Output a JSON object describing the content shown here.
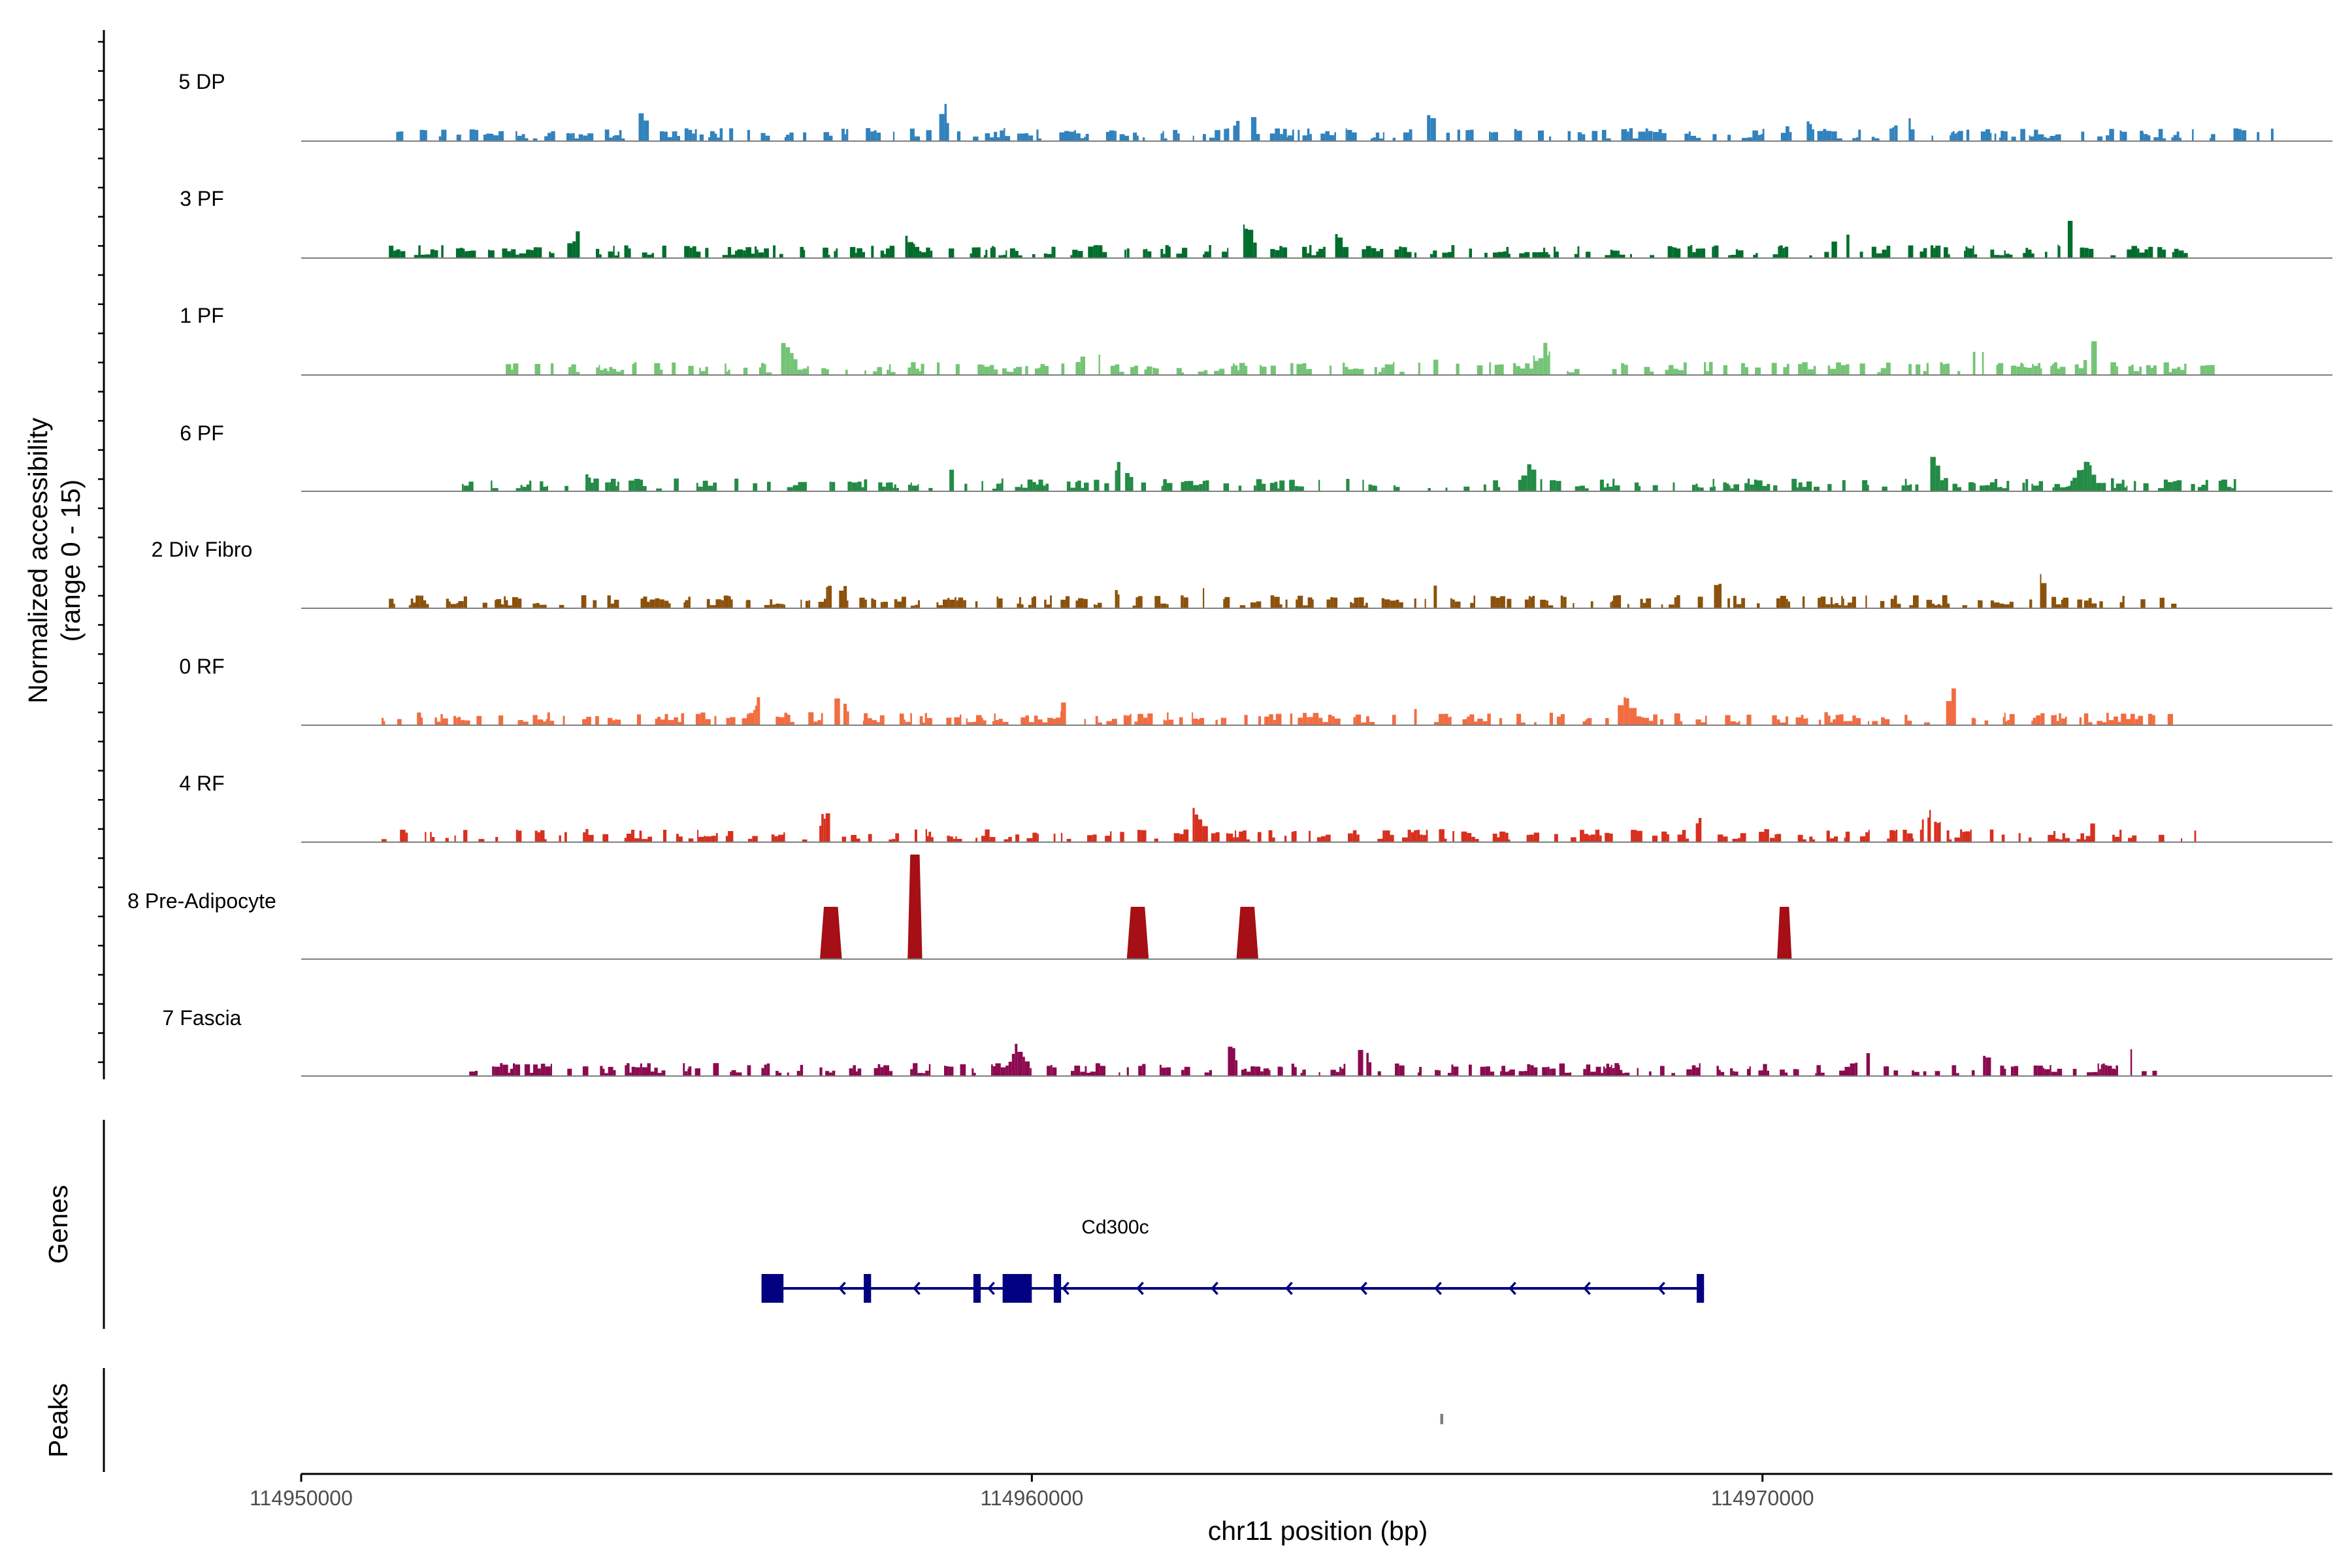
{
  "chart_data": {
    "type": "area",
    "description_of_panels": [
      "coverage",
      "genes",
      "peaks"
    ],
    "region": {
      "chromosome": "chr11",
      "start": 114950000,
      "end": 114977800
    },
    "y_axis_label": [
      "Normalized accessibility",
      "(range 0 - 15)"
    ],
    "y_range": [
      0,
      15
    ],
    "x_axis_title": "chr11 position (bp)",
    "x_ticks": [
      {
        "value": 114950000,
        "label": "114950000"
      },
      {
        "value": 114960000,
        "label": "114960000"
      },
      {
        "value": 114970000,
        "label": "114970000"
      }
    ],
    "genes_panel_label": "Genes",
    "peaks_panel_label": "Peaks",
    "tracks": [
      {
        "name": "5 DP",
        "color": "#3182bd",
        "regions": [
          [
            114951300,
            114952600
          ],
          [
            114952600,
            114954200
          ],
          [
            114954200,
            114957200
          ],
          [
            114957200,
            114958100
          ],
          [
            114958100,
            114959800
          ],
          [
            114959800,
            114960500
          ],
          [
            114960500,
            114962000
          ],
          [
            114962000,
            114963500
          ],
          [
            114963500,
            114964400
          ],
          [
            114964400,
            114965500
          ],
          [
            114965500,
            114966700
          ],
          [
            114966700,
            114968500
          ],
          [
            114968500,
            114970000
          ],
          [
            114970000,
            114972000
          ],
          [
            114972000,
            114973200
          ],
          [
            114973200,
            114974200
          ],
          [
            114974200,
            114975200
          ],
          [
            114975200,
            114976500
          ],
          [
            114976500,
            114977000
          ]
        ],
        "peaks": [
          114954700,
          114958800,
          114962900,
          114965400,
          114970500,
          114971900
        ]
      },
      {
        "name": "3 PF",
        "color": "#006d2c",
        "regions": [
          [
            114951200,
            114952300
          ],
          [
            114952300,
            114953600
          ],
          [
            114953600,
            114955400
          ],
          [
            114955400,
            114956400
          ],
          [
            114956400,
            114957800
          ],
          [
            114957800,
            114959700
          ],
          [
            114959700,
            114961300
          ],
          [
            114961300,
            114962600
          ],
          [
            114962600,
            114963900
          ],
          [
            114963900,
            114965500
          ],
          [
            114965500,
            114967200
          ],
          [
            114967200,
            114968800
          ],
          [
            114968800,
            114970400
          ],
          [
            114970400,
            114972300
          ],
          [
            114972300,
            114973600
          ],
          [
            114973600,
            114975000
          ],
          [
            114975000,
            114975800
          ]
        ],
        "peaks": [
          114953800,
          114958200,
          114962900,
          114964100,
          114971100,
          114974200
        ]
      },
      {
        "name": "1 PF",
        "color": "#74c476",
        "regions": [
          [
            114952800,
            114954700
          ],
          [
            114954700,
            114956100
          ],
          [
            114956100,
            114957300
          ],
          [
            114957300,
            114958700
          ],
          [
            114958700,
            114960100
          ],
          [
            114960100,
            114961600
          ],
          [
            114961600,
            114962900
          ],
          [
            114962900,
            114964700
          ],
          [
            114964700,
            114966100
          ],
          [
            114966100,
            114967700
          ],
          [
            114967700,
            114969100
          ],
          [
            114969100,
            114970800
          ],
          [
            114970800,
            114972200
          ],
          [
            114972200,
            114973400
          ],
          [
            114973400,
            114974500
          ],
          [
            114974500,
            114975500
          ],
          [
            114975500,
            114976200
          ]
        ],
        "peaks": [
          114956600,
          114960800,
          114965400,
          114967000,
          114972900,
          114974500
        ]
      },
      {
        "name": "6 PF",
        "color": "#238b45",
        "regions": [
          [
            114952200,
            114954000
          ],
          [
            114954000,
            114955100
          ],
          [
            114955100,
            114957100
          ],
          [
            114957100,
            114958700
          ],
          [
            114958700,
            114960100
          ],
          [
            114960100,
            114961900
          ],
          [
            114961900,
            114962900
          ],
          [
            114962900,
            114964100
          ],
          [
            114964100,
            114965200
          ],
          [
            114965200,
            114966700
          ],
          [
            114966700,
            114968200
          ],
          [
            114968200,
            114969500
          ],
          [
            114969500,
            114970700
          ],
          [
            114970700,
            114971700
          ],
          [
            114971700,
            114972600
          ],
          [
            114972600,
            114973600
          ],
          [
            114973600,
            114974800
          ],
          [
            114974800,
            114975700
          ],
          [
            114975700,
            114976700
          ]
        ],
        "peaks": [
          114953800,
          114958800,
          114961200,
          114966800,
          114972300,
          114974400
        ]
      },
      {
        "name": "2 Div Fibro",
        "color": "#8c510a",
        "regions": [
          [
            114951200,
            114952600
          ],
          [
            114952600,
            114954400
          ],
          [
            114954400,
            114956100
          ],
          [
            114956100,
            114957800
          ],
          [
            114957800,
            114959300
          ],
          [
            114959300,
            114961000
          ],
          [
            114961000,
            114962400
          ],
          [
            114962400,
            114963800
          ],
          [
            114963800,
            114965500
          ],
          [
            114965500,
            114966500
          ],
          [
            114966500,
            114968000
          ],
          [
            114968000,
            114969600
          ],
          [
            114969600,
            114971000
          ],
          [
            114971000,
            114972400
          ],
          [
            114972400,
            114973500
          ],
          [
            114973500,
            114974400
          ],
          [
            114974400,
            114975600
          ]
        ],
        "peaks": [
          114957300,
          114961100,
          114962300,
          114965600,
          114969300,
          114973800
        ]
      },
      {
        "name": "0 RF",
        "color": "#f16d41",
        "regions": [
          [
            114951100,
            114952400
          ],
          [
            114952400,
            114953900
          ],
          [
            114953900,
            114955200
          ],
          [
            114955200,
            114956100
          ],
          [
            114956100,
            114957700
          ],
          [
            114957700,
            114959100
          ],
          [
            114959100,
            114960400
          ],
          [
            114960400,
            114961800
          ],
          [
            114961800,
            114963100
          ],
          [
            114963100,
            114964400
          ],
          [
            114964400,
            114965900
          ],
          [
            114965900,
            114967100
          ],
          [
            114967100,
            114968600
          ],
          [
            114968600,
            114970000
          ],
          [
            114970000,
            114971500
          ],
          [
            114971500,
            114972900
          ],
          [
            114972900,
            114974400
          ],
          [
            114974400,
            114975600
          ]
        ],
        "peaks": [
          114956300,
          114957300,
          114960500,
          114965100,
          114968100,
          114972600
        ]
      },
      {
        "name": "4 RF",
        "color": "#d7301f",
        "regions": [
          [
            114951100,
            114952500
          ],
          [
            114952500,
            114954000
          ],
          [
            114954000,
            114955300
          ],
          [
            114955300,
            114956600
          ],
          [
            114956600,
            114957400
          ],
          [
            114957400,
            114958400
          ],
          [
            114958400,
            114960700
          ],
          [
            114960700,
            114962200
          ],
          [
            114962200,
            114963500
          ],
          [
            114963500,
            114964800
          ],
          [
            114964800,
            114966400
          ],
          [
            114966400,
            114967500
          ],
          [
            114967500,
            114968900
          ],
          [
            114968900,
            114970100
          ],
          [
            114970100,
            114972000
          ],
          [
            114972000,
            114973300
          ],
          [
            114973300,
            114974400
          ],
          [
            114974400,
            114975200
          ],
          [
            114975200,
            114976000
          ]
        ],
        "peaks": [
          114957200,
          114962200,
          114969200,
          114972300,
          114974600
        ]
      },
      {
        "name": "8 Pre-Adipocyte",
        "color": "#a50f15",
        "regions": [
          [
            114957100,
            114957400
          ],
          [
            114958300,
            114958500
          ],
          [
            114961300,
            114961600
          ],
          [
            114962800,
            114963100
          ],
          [
            114970200,
            114970400
          ]
        ],
        "peaks": [
          114958400
        ]
      },
      {
        "name": "7 Fascia",
        "color": "#8b0a50",
        "regions": [
          [
            114952300,
            114953700
          ],
          [
            114953700,
            114955300
          ],
          [
            114955300,
            114956500
          ],
          [
            114956500,
            114958100
          ],
          [
            114958100,
            114959500
          ],
          [
            114959500,
            114960800
          ],
          [
            114960800,
            114962300
          ],
          [
            114962300,
            114963800
          ],
          [
            114963800,
            114965300
          ],
          [
            114965300,
            114966600
          ],
          [
            114966600,
            114968000
          ],
          [
            114968000,
            114969400
          ],
          [
            114969400,
            114970800
          ],
          [
            114970800,
            114972200
          ],
          [
            114972200,
            114973400
          ],
          [
            114973400,
            114974800
          ],
          [
            114974800,
            114975500
          ]
        ],
        "peaks": [
          114959800,
          114962700,
          114964500,
          114971400,
          114973100,
          114975000
        ]
      }
    ],
    "genes": [
      {
        "name": "Cd300c",
        "strand": "-",
        "color": "#000080",
        "start": 114956300,
        "end": 114969200,
        "exons": [
          [
            114956300,
            114956600
          ],
          [
            114957700,
            114957800
          ],
          [
            114959200,
            114959300
          ],
          [
            114959600,
            114960000
          ],
          [
            114960300,
            114960400
          ],
          [
            114969100,
            114969200
          ]
        ]
      }
    ],
    "peak_regions": [
      [
        114965590,
        114965630
      ]
    ]
  }
}
